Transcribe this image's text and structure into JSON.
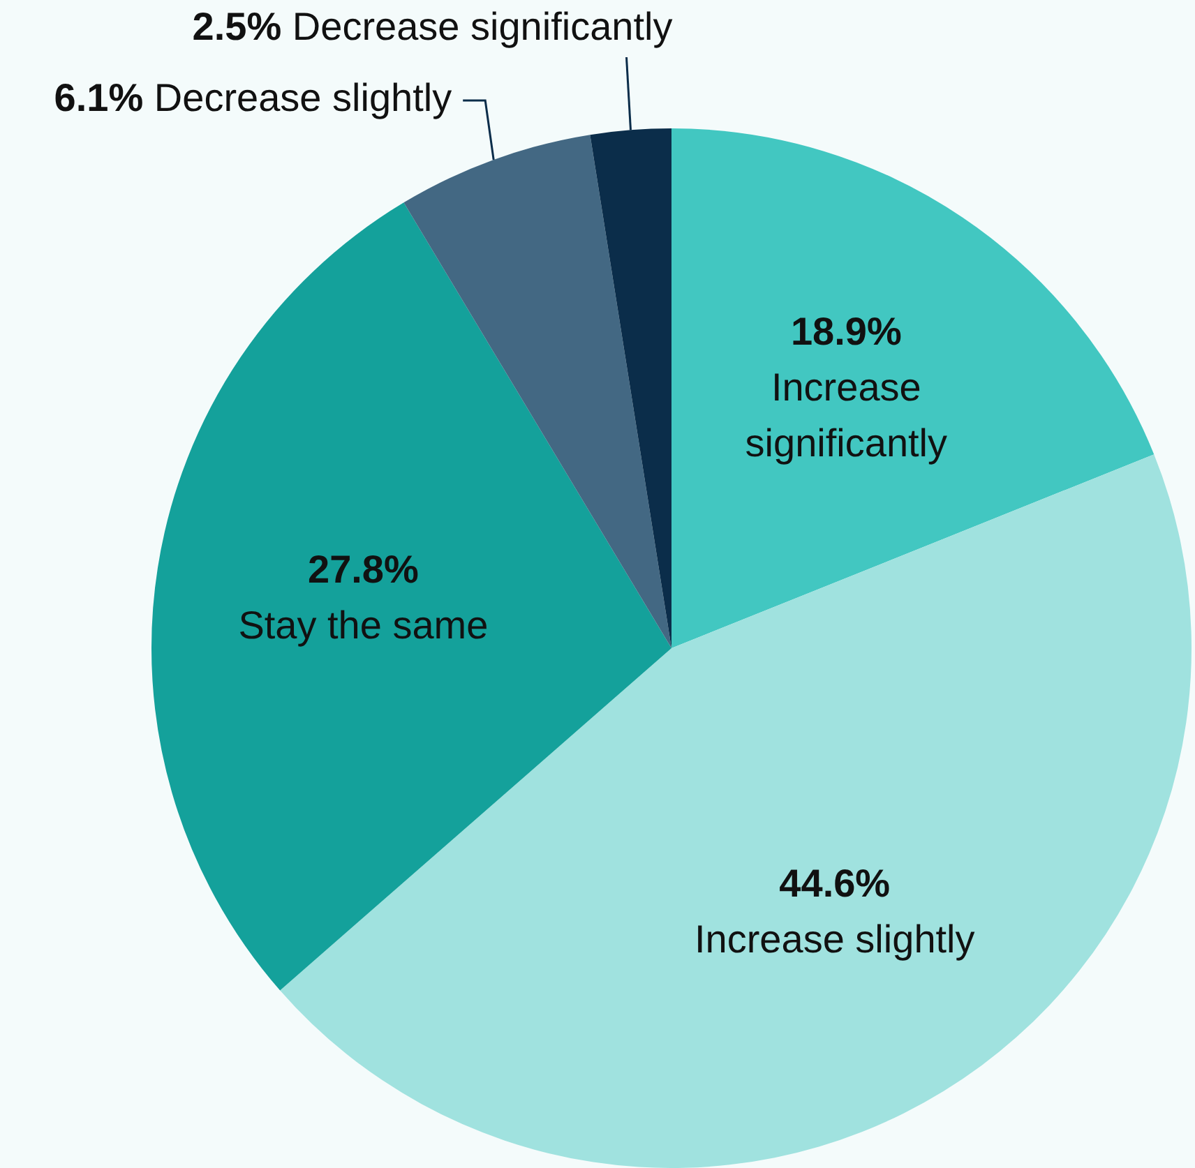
{
  "chart_data": {
    "type": "pie",
    "categories": [
      "Increase significantly",
      "Increase slightly",
      "Stay the same",
      "Decrease slightly",
      "Decrease significantly"
    ],
    "values": [
      18.9,
      44.6,
      27.8,
      6.1,
      2.5
    ],
    "colors": [
      "#42c7c1",
      "#a0e2df",
      "#14a19b",
      "#436883",
      "#0b2d4a"
    ],
    "value_labels": [
      "18.9%",
      "44.6%",
      "27.8%",
      "6.1%",
      "2.5%"
    ],
    "legend": false
  }
}
